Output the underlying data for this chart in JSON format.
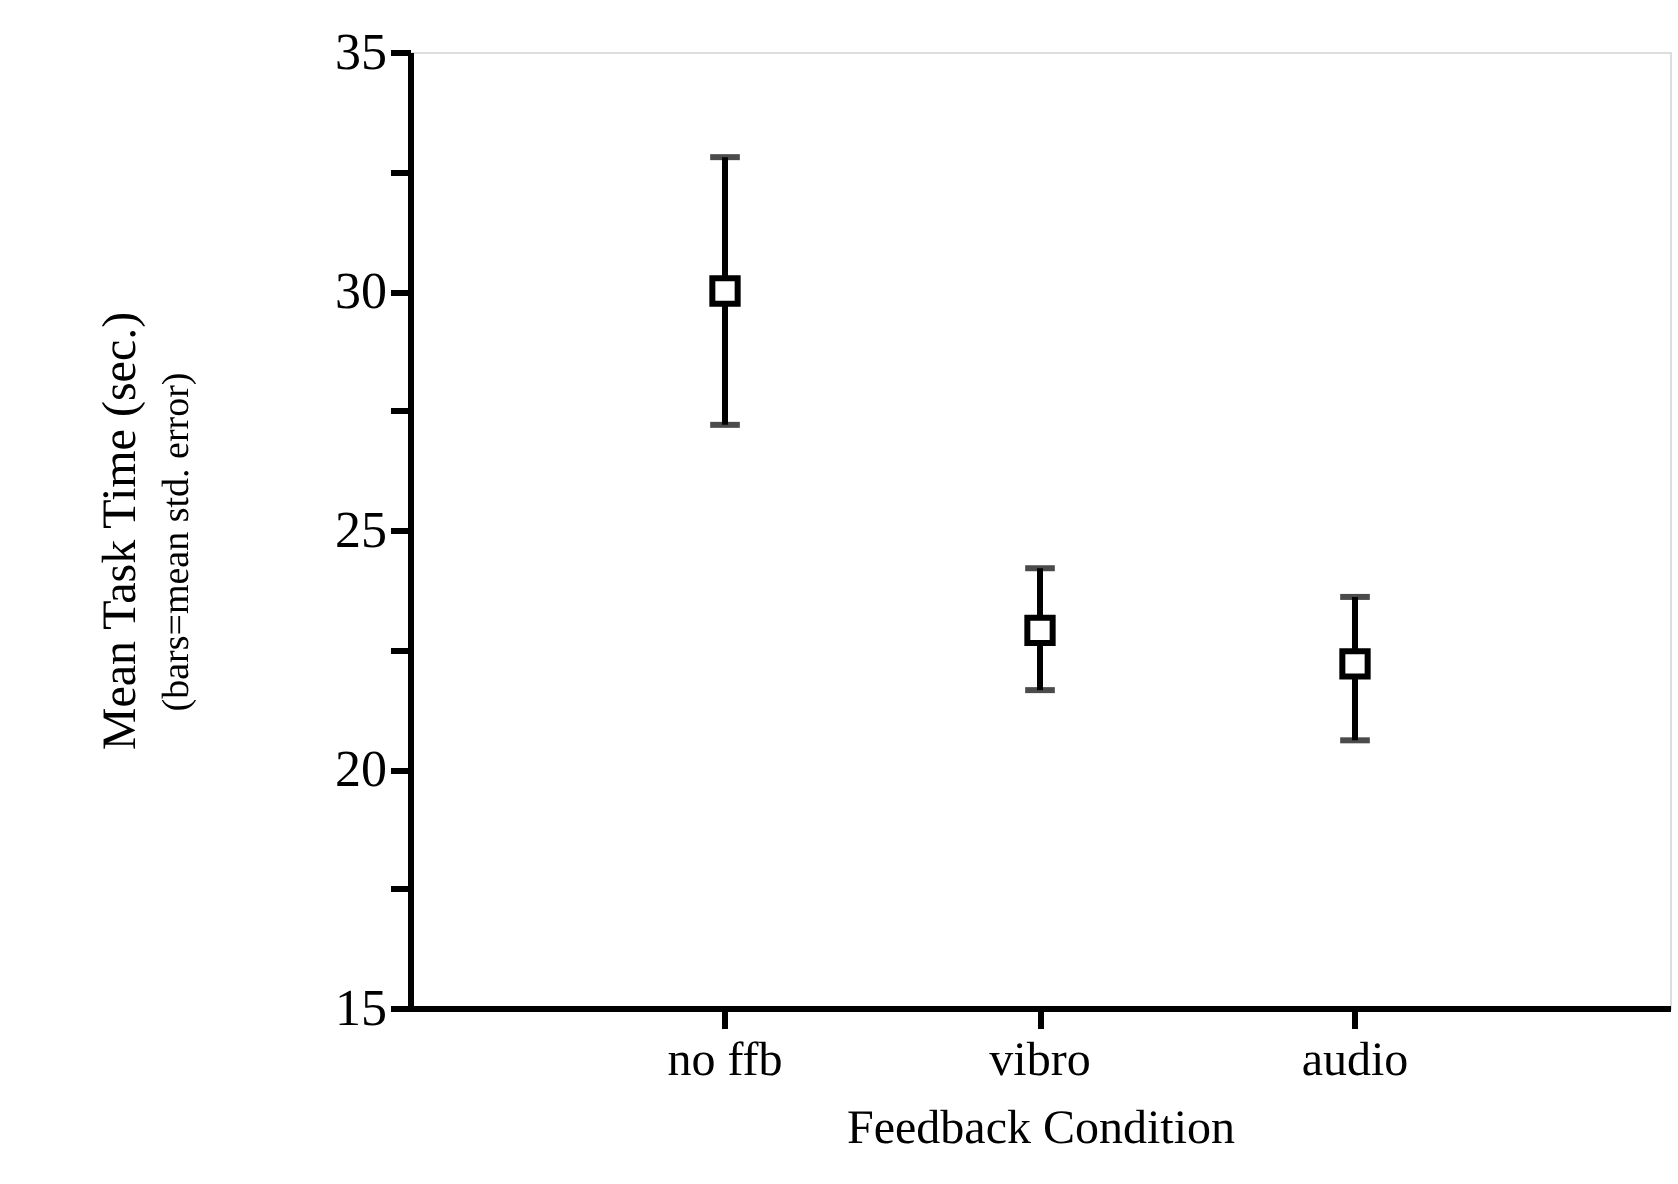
{
  "chart_data": {
    "type": "scatter",
    "xlabel": "Feedback Condition",
    "ylabel": "Mean Task Time (sec.)",
    "annotations": [
      "(bars=mean std. error)"
    ],
    "categories": [
      "no ffb",
      "vibro",
      "audio"
    ],
    "series": [
      {
        "color": "#000000",
        "values": [
          30.0,
          22.9,
          22.2
        ],
        "errors": [
          [
            27.2,
            32.8
          ],
          [
            21.65,
            24.2
          ],
          [
            20.6,
            23.6
          ]
        ]
      }
    ],
    "marker": "square",
    "grid": false,
    "legend": false,
    "ylim": [
      15,
      35
    ],
    "yticks": [
      15,
      {
        "value": 17.5,
        "label": null
      },
      20,
      {
        "value": 22.5,
        "label": null
      },
      25,
      {
        "value": 27.5,
        "label": null
      },
      30,
      {
        "value": 32.5,
        "label": null
      },
      35
    ]
  }
}
